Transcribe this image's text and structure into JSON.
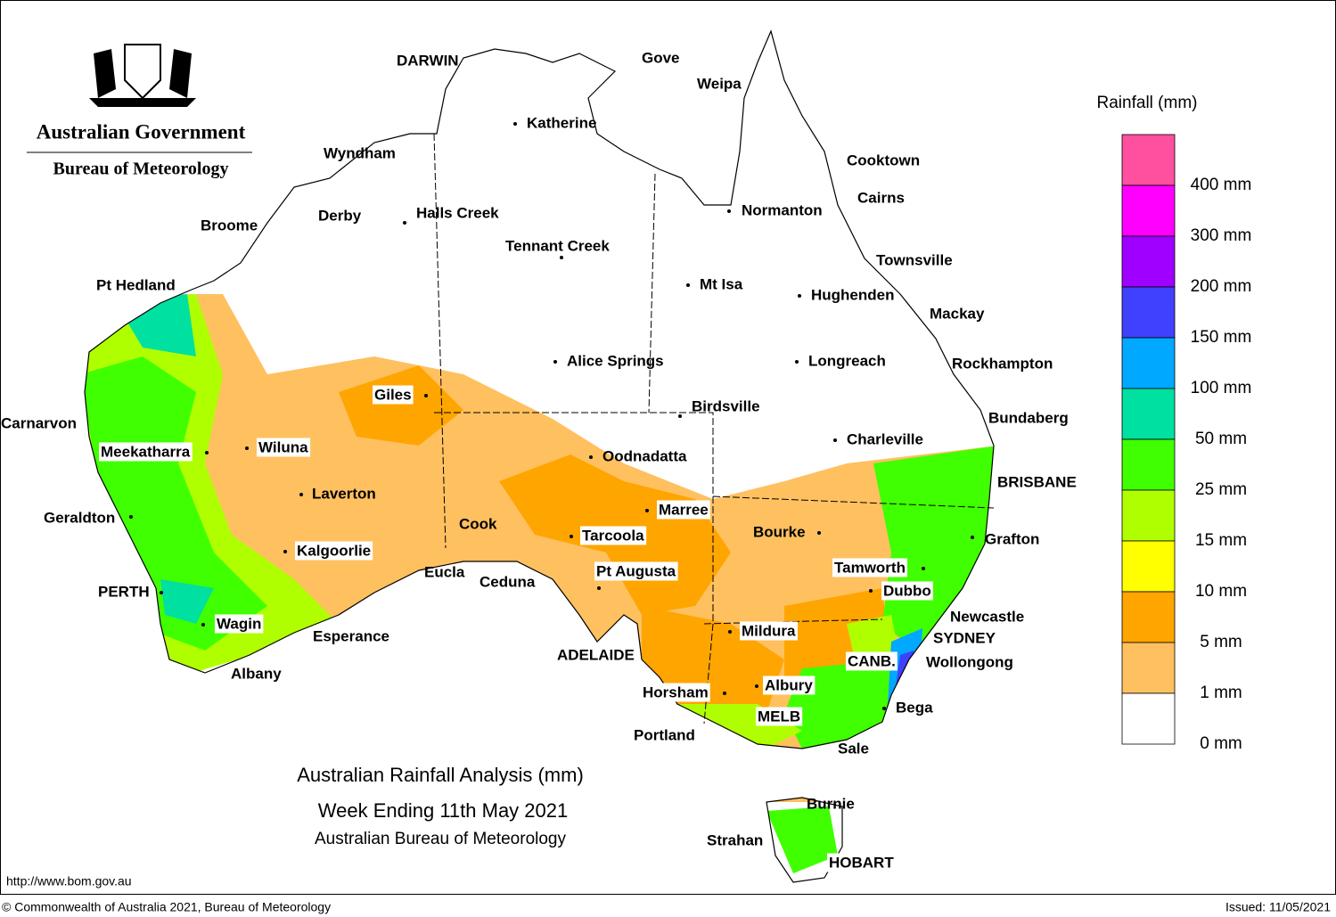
{
  "header": {
    "org": "Australian Government",
    "bureau": "Bureau of Meteorology"
  },
  "legend": {
    "title": "Rainfall (mm)",
    "colors": [
      "#ff50a0",
      "#ff00ff",
      "#a000ff",
      "#4040ff",
      "#00a8ff",
      "#00e0a0",
      "#40ff00",
      "#b0ff00",
      "#ffff00",
      "#ffa500",
      "#ffc060",
      "#ffffff"
    ],
    "labels": [
      "400 mm",
      "300 mm",
      "200 mm",
      "150 mm",
      "100 mm",
      "50 mm",
      "25 mm",
      "15 mm",
      "10 mm",
      "5 mm",
      "1 mm",
      "0 mm"
    ]
  },
  "places": [
    "DARWIN",
    "Gove",
    "Weipa",
    "Katherine",
    "Cooktown",
    "Wyndham",
    "Cairns",
    "Normanton",
    "Derby",
    "Halls Creek",
    "Broome",
    "Tennant Creek",
    "Townsville",
    "Pt Hedland",
    "Mt Isa",
    "Hughenden",
    "Mackay",
    "Alice Springs",
    "Longreach",
    "Rockhampton",
    "Giles",
    "Birdsville",
    "Bundaberg",
    "Carnarvon",
    "Charleville",
    "Wiluna",
    "Meekatharra",
    "Oodnadatta",
    "BRISBANE",
    "Laverton",
    "Marree",
    "Geraldton",
    "Cook",
    "Bourke",
    "Tarcoola",
    "Grafton",
    "Kalgoorlie",
    "Tamworth",
    "Eucla",
    "Pt Augusta",
    "Ceduna",
    "Dubbo",
    "PERTH",
    "Newcastle",
    "Wagin",
    "Mildura",
    "Esperance",
    "SYDNEY",
    "ADELAIDE",
    "CANB.",
    "Wollongong",
    "Albany",
    "Albury",
    "Horsham",
    "Bega",
    "MELB",
    "Portland",
    "Sale",
    "Burnie",
    "Strahan",
    "HOBART"
  ],
  "title": [
    "Australian Rainfall Analysis (mm)",
    "Week Ending 11th May 2021",
    "Australian Bureau of Meteorology"
  ],
  "footer": {
    "url": "http://www.bom.gov.au",
    "copyright": "© Commonwealth of Australia 2021, Bureau of Meteorology",
    "issued": "Issued: 11/05/2021"
  }
}
